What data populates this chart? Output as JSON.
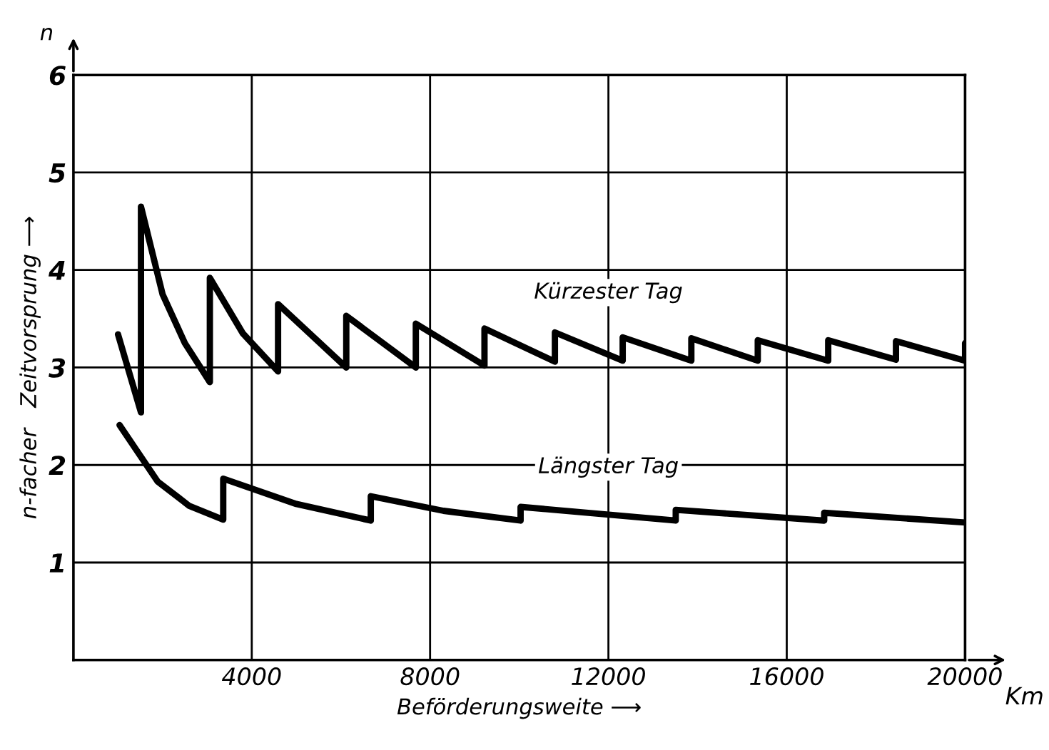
{
  "chart_data": {
    "type": "line",
    "xlabel": "Beförderungsweite ⟶",
    "ylabel": "n-facher   Zeitvorsprung ⟶",
    "annotations": [
      "n",
      "Km"
    ],
    "xlim": [
      0,
      20000
    ],
    "ylim": [
      0,
      6
    ],
    "xticks": [
      4000,
      8000,
      12000,
      16000,
      20000
    ],
    "yticks": [
      1,
      2,
      3,
      4,
      5,
      6
    ],
    "grid": true,
    "legend": false,
    "marker": "none",
    "line_style": "solid",
    "series": [
      {
        "name": "Kürzester Tag",
        "color": "#000000",
        "x": [
          1000,
          1250,
          1515,
          1515,
          2000,
          2500,
          3060,
          3060,
          3800,
          4590,
          4590,
          6120,
          6120,
          7680,
          7680,
          9220,
          9220,
          10800,
          10800,
          12320,
          12320,
          13860,
          13860,
          15350,
          15350,
          16930,
          16930,
          18450,
          18450,
          20000,
          20000
        ],
        "values": [
          3.34,
          2.95,
          2.54,
          4.65,
          3.75,
          3.25,
          2.85,
          3.92,
          3.35,
          2.96,
          3.65,
          3.0,
          3.53,
          3.0,
          3.45,
          3.02,
          3.4,
          3.06,
          3.36,
          3.07,
          3.31,
          3.07,
          3.3,
          3.07,
          3.28,
          3.07,
          3.28,
          3.08,
          3.27,
          3.07,
          3.25
        ]
      },
      {
        "name": "Längster Tag",
        "color": "#000000",
        "x": [
          1035,
          1890,
          2600,
          3360,
          3360,
          5000,
          6670,
          6670,
          8300,
          10030,
          10030,
          13510,
          13510,
          16840,
          16840,
          20000
        ],
        "values": [
          2.41,
          1.83,
          1.58,
          1.44,
          1.86,
          1.6,
          1.43,
          1.68,
          1.53,
          1.43,
          1.57,
          1.43,
          1.54,
          1.43,
          1.51,
          1.41
        ]
      }
    ]
  }
}
